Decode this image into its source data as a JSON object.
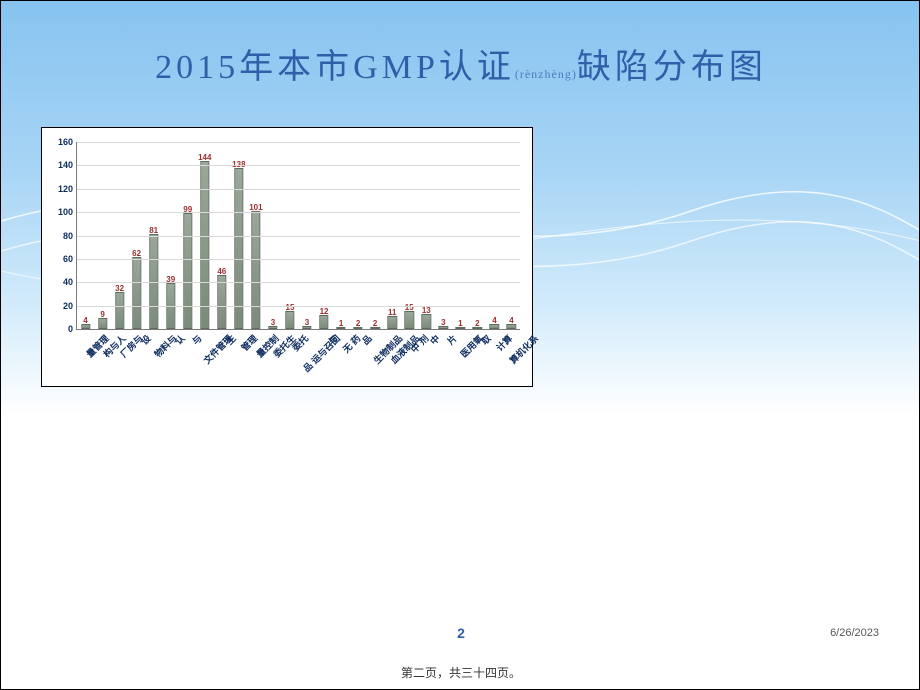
{
  "title": {
    "prefix": "2015年本市GMP认证",
    "pinyin": "(rènzhèng)",
    "suffix": "缺陷分布图"
  },
  "chart": {
    "type": "bar",
    "ylim": [
      0,
      160
    ],
    "ytick_step": 20,
    "yticks": [
      0,
      20,
      40,
      60,
      80,
      100,
      120,
      140,
      160
    ],
    "grid_color": "#d9d9d9",
    "axis_color": "#7a7a7a",
    "bar_fill": "#8a978a",
    "bar_border": "#5d6c5c",
    "value_color": "#9c2e2e",
    "tick_color": "#0d2b5e",
    "bar_width_ratio": 0.55,
    "categories": [
      {
        "label": "量管理",
        "value": 4
      },
      {
        "label": "构与人",
        "value": 9
      },
      {
        "label": "厂房与",
        "value": 32
      },
      {
        "label": "设",
        "value": 62
      },
      {
        "label": "物料与",
        "value": 81
      },
      {
        "label": "认",
        "value": 39
      },
      {
        "label": "与",
        "value": 99
      },
      {
        "label": "文件管理",
        "value": 144
      },
      {
        "label": "生",
        "value": 46
      },
      {
        "label": "管理",
        "value": 138
      },
      {
        "label": "量控制",
        "value": 101
      },
      {
        "label": "委托生",
        "value": 3
      },
      {
        "label": "委托",
        "value": 15
      },
      {
        "label": "品 运与召回",
        "value": 3
      },
      {
        "label": "与",
        "value": 12
      },
      {
        "label": "无 药",
        "value": 1
      },
      {
        "label": "品",
        "value": 2
      },
      {
        "label": "生物制品",
        "value": 2
      },
      {
        "label": "血液制品",
        "value": 11
      },
      {
        "label": "中 剂",
        "value": 15
      },
      {
        "label": "中",
        "value": 13
      },
      {
        "label": "片",
        "value": 3
      },
      {
        "label": "医用氧",
        "value": 1
      },
      {
        "label": "取",
        "value": 2
      },
      {
        "label": "计算",
        "value": 4
      },
      {
        "label": "算机化系",
        "value": 4
      }
    ]
  },
  "page_number": "2",
  "date": "6/26/2023",
  "footer": "第二页，共三十四页。"
}
